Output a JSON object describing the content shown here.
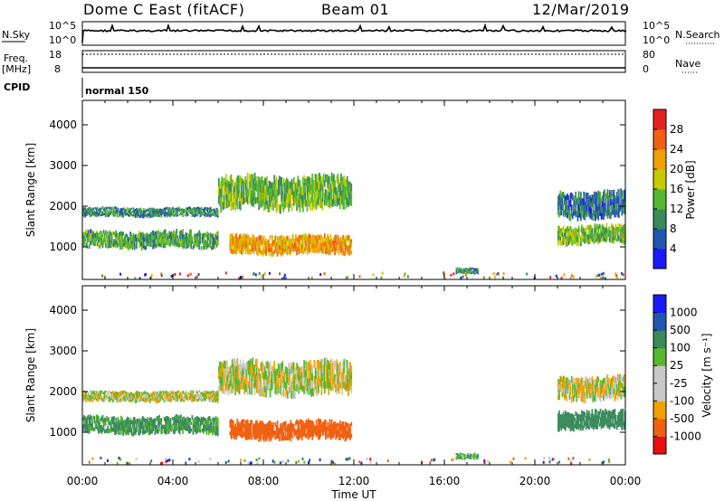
{
  "header": {
    "station": "Dome C East (fitACF)",
    "beam": "Beam 01",
    "date": "12/Mar/2019"
  },
  "strips": {
    "nsky_label": "N.Sky",
    "nsearch_label": "N.Search",
    "freq_label_1": "Freq.",
    "freq_label_2": "[MHz]",
    "nave_label": "Nave",
    "cpid_label": "CPID",
    "cpid_value": "normal 150",
    "nsky_ticks": [
      "10^5",
      "10^0"
    ],
    "nsearch_ticks": [
      "10^5",
      "10^0"
    ],
    "freq_ticks": [
      "18",
      "8"
    ],
    "nave_ticks": [
      "80",
      "0"
    ]
  },
  "colors": {
    "power_scale": [
      "#1a1aff",
      "#2255b0",
      "#3a8a5c",
      "#55b830",
      "#c8c800",
      "#f0a000",
      "#f06010",
      "#e82020"
    ],
    "velocity_scale": [
      "#e81010",
      "#f06010",
      "#f0a000",
      "#c8c8c8",
      "#c8c8c8",
      "#55b830",
      "#3a8a5c",
      "#2255b0",
      "#1a1aff"
    ]
  },
  "chart_data": [
    {
      "type": "heatmap",
      "title": "",
      "ylabel": "Slant Range [km]",
      "xlabel": "",
      "x_ticks": [
        "00:00",
        "04:00",
        "08:00",
        "12:00",
        "16:00",
        "20:00",
        "00:00"
      ],
      "xlim_hours": [
        0,
        24
      ],
      "ylim": [
        200,
        4600
      ],
      "y_ticks": [
        1000,
        2000,
        3000,
        4000
      ],
      "colorbar": {
        "label": "Power [dB]",
        "ticks": [
          "4",
          "8",
          "12",
          "16",
          "20",
          "24",
          "28"
        ],
        "range": [
          0,
          32
        ]
      },
      "echo_regions": [
        {
          "t_start": 0.0,
          "t_end": 6.0,
          "r_low": 1700,
          "r_high": 2000,
          "value": 10
        },
        {
          "t_start": 0.0,
          "t_end": 6.0,
          "r_low": 900,
          "r_high": 1450,
          "value": 12
        },
        {
          "t_start": 6.0,
          "t_end": 11.9,
          "r_low": 1800,
          "r_high": 2850,
          "value": 14
        },
        {
          "t_start": 6.5,
          "t_end": 11.9,
          "r_low": 750,
          "r_high": 1350,
          "value": 22
        },
        {
          "t_start": 16.5,
          "t_end": 17.5,
          "r_low": 300,
          "r_high": 500,
          "value": 10
        },
        {
          "t_start": 21.0,
          "t_end": 24.0,
          "r_low": 1600,
          "r_high": 2450,
          "value": 8
        },
        {
          "t_start": 21.0,
          "t_end": 24.0,
          "r_low": 1000,
          "r_high": 1600,
          "value": 14
        }
      ]
    },
    {
      "type": "heatmap",
      "title": "",
      "ylabel": "Slant Range [km]",
      "xlabel": "Time UT",
      "x_ticks": [
        "00:00",
        "04:00",
        "08:00",
        "12:00",
        "16:00",
        "20:00",
        "00:00"
      ],
      "xlim_hours": [
        0,
        24
      ],
      "ylim": [
        200,
        4600
      ],
      "y_ticks": [
        1000,
        2000,
        3000,
        4000
      ],
      "colorbar": {
        "label": "Velocity [m s⁻¹]",
        "ticks": [
          "1000",
          "500",
          "100",
          "25",
          "-25",
          "-100",
          "-500",
          "-1000"
        ],
        "range": [
          -1000,
          1000
        ]
      },
      "echo_regions": [
        {
          "t_start": 0.0,
          "t_end": 6.0,
          "r_low": 1700,
          "r_high": 2050,
          "value": 0
        },
        {
          "t_start": 0.0,
          "t_end": 6.0,
          "r_low": 900,
          "r_high": 1450,
          "value": 150
        },
        {
          "t_start": 6.0,
          "t_end": 11.9,
          "r_low": 1800,
          "r_high": 2850,
          "value": 0
        },
        {
          "t_start": 6.5,
          "t_end": 11.9,
          "r_low": 750,
          "r_high": 1350,
          "value": -300
        },
        {
          "t_start": 16.5,
          "t_end": 17.5,
          "r_low": 300,
          "r_high": 500,
          "value": 100
        },
        {
          "t_start": 21.0,
          "t_end": 24.0,
          "r_low": 1700,
          "r_high": 2450,
          "value": 0
        },
        {
          "t_start": 21.0,
          "t_end": 24.0,
          "r_low": 1000,
          "r_high": 1600,
          "value": 300
        }
      ]
    }
  ]
}
